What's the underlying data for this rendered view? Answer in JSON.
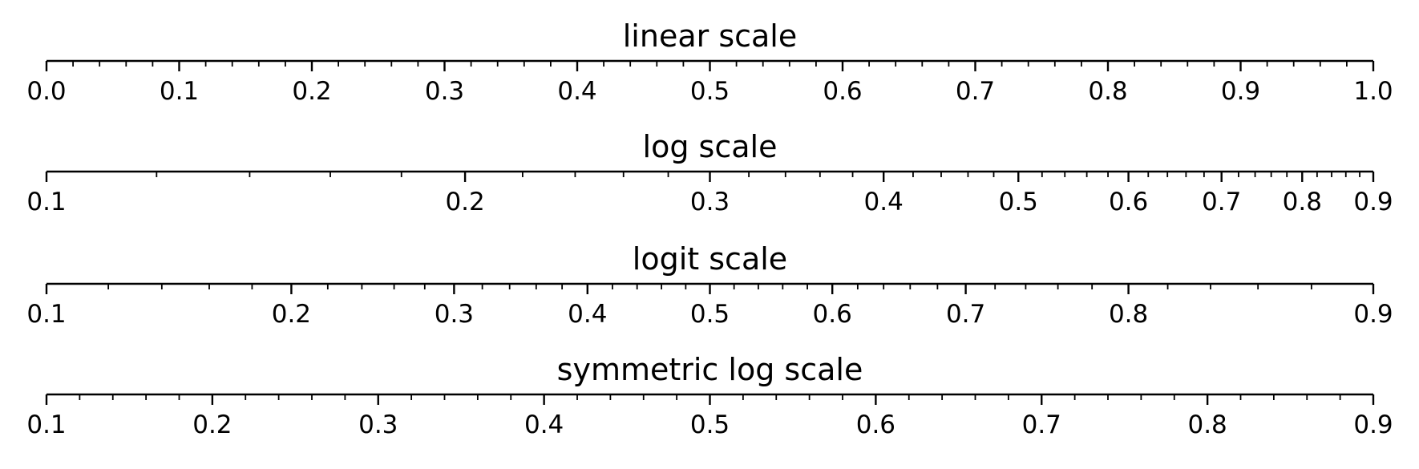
{
  "chart_data": [
    {
      "type": "axis",
      "title": "linear scale",
      "scale": "linear",
      "xlim": [
        0.0,
        1.0
      ],
      "major_ticks": [
        0.0,
        0.1,
        0.2,
        0.3,
        0.4,
        0.5,
        0.6,
        0.7,
        0.8,
        0.9,
        1.0
      ],
      "tick_labels": [
        "0.0",
        "0.1",
        "0.2",
        "0.3",
        "0.4",
        "0.5",
        "0.6",
        "0.7",
        "0.8",
        "0.9",
        "1.0"
      ],
      "minor_ticks": "every 0.02"
    },
    {
      "type": "axis",
      "title": "log scale",
      "scale": "log",
      "xlim": [
        0.1,
        0.9
      ],
      "major_ticks": [
        0.1,
        0.2,
        0.3,
        0.4,
        0.5,
        0.6,
        0.7,
        0.8,
        0.9
      ],
      "tick_labels": [
        "0.1",
        "0.2",
        "0.3",
        "0.4",
        "0.5",
        "0.6",
        "0.7",
        "0.8",
        "0.9"
      ],
      "minor_ticks": "every 0.02"
    },
    {
      "type": "axis",
      "title": "logit scale",
      "scale": "logit",
      "xlim": [
        0.1,
        0.9
      ],
      "major_ticks": [
        0.1,
        0.2,
        0.3,
        0.4,
        0.5,
        0.6,
        0.7,
        0.8,
        0.9
      ],
      "tick_labels": [
        "0.1",
        "0.2",
        "0.3",
        "0.4",
        "0.5",
        "0.6",
        "0.7",
        "0.8",
        "0.9"
      ],
      "minor_ticks": "every 0.02"
    },
    {
      "type": "axis",
      "title": "symmetric log scale",
      "scale": "symlog",
      "xlim": [
        0.1,
        0.9
      ],
      "major_ticks": [
        0.1,
        0.2,
        0.3,
        0.4,
        0.5,
        0.6,
        0.7,
        0.8,
        0.9
      ],
      "tick_labels": [
        "0.1",
        "0.2",
        "0.3",
        "0.4",
        "0.5",
        "0.6",
        "0.7",
        "0.8",
        "0.9"
      ],
      "minor_ticks": "every 0.02"
    }
  ]
}
